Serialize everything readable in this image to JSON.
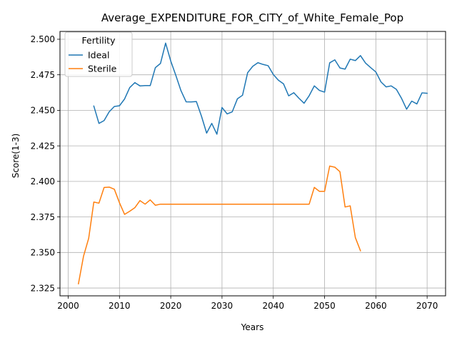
{
  "chart_data": {
    "type": "line",
    "title": "Average_EXPENDITURE_FOR_CITY_of_White_Female_Pop",
    "xlabel": "Years",
    "ylabel": "Score(1-3)",
    "xlim": [
      1998.4,
      2073.6
    ],
    "ylim": [
      2.3195,
      2.5055
    ],
    "xticks": [
      2000,
      2010,
      2020,
      2030,
      2040,
      2050,
      2060,
      2070
    ],
    "xtick_labels": [
      "2000",
      "2010",
      "2020",
      "2030",
      "2040",
      "2050",
      "2060",
      "2070"
    ],
    "yticks": [
      2.325,
      2.35,
      2.375,
      2.4,
      2.425,
      2.45,
      2.475,
      2.5
    ],
    "ytick_labels": [
      "2.325",
      "2.350",
      "2.375",
      "2.400",
      "2.425",
      "2.450",
      "2.475",
      "2.500"
    ],
    "grid": true,
    "legend": {
      "title": "Fertility",
      "placement": "top-left"
    },
    "series": [
      {
        "name": "Ideal",
        "color": "#1f77b4",
        "x": [
          2005,
          2006,
          2007,
          2008,
          2009,
          2010,
          2011,
          2012,
          2013,
          2014,
          2015,
          2016,
          2017,
          2018,
          2019,
          2020,
          2021,
          2022,
          2023,
          2024,
          2025,
          2026,
          2027,
          2028,
          2029,
          2030,
          2031,
          2032,
          2033,
          2034,
          2035,
          2036,
          2037,
          2038,
          2039,
          2040,
          2041,
          2042,
          2043,
          2044,
          2045,
          2046,
          2047,
          2048,
          2049,
          2050,
          2051,
          2052,
          2053,
          2054,
          2055,
          2056,
          2057,
          2058,
          2059,
          2060,
          2061,
          2062,
          2063,
          2064,
          2065,
          2066,
          2067,
          2068,
          2069,
          2070
        ],
        "y": [
          2.453,
          2.4408,
          2.4428,
          2.449,
          2.4527,
          2.4532,
          2.458,
          2.466,
          2.4695,
          2.4672,
          2.4674,
          2.4674,
          2.48,
          2.483,
          2.4973,
          2.4847,
          2.4745,
          2.4638,
          2.456,
          2.4559,
          2.4562,
          2.4458,
          2.434,
          2.4408,
          2.4332,
          2.452,
          2.4475,
          2.449,
          2.4581,
          2.4606,
          2.4765,
          2.481,
          2.4835,
          2.4823,
          2.4814,
          2.4752,
          2.4712,
          2.4686,
          2.4602,
          2.4624,
          2.4585,
          2.455,
          2.4603,
          2.4672,
          2.464,
          2.4628,
          2.4834,
          2.4855,
          2.4798,
          2.479,
          2.486,
          2.485,
          2.4885,
          2.4832,
          2.48,
          2.477,
          2.47,
          2.4665,
          2.4672,
          2.4648,
          2.4585,
          2.4508,
          2.4565,
          2.4545,
          2.4623,
          2.462
        ]
      },
      {
        "name": "Sterile",
        "color": "#ff7f0e",
        "x": [
          2002,
          2003,
          2004,
          2005,
          2006,
          2007,
          2008,
          2009,
          2010,
          2011,
          2012,
          2013,
          2014,
          2015,
          2016,
          2017,
          2018,
          2019,
          2020,
          2021,
          2022,
          2023,
          2024,
          2025,
          2026,
          2027,
          2028,
          2029,
          2030,
          2031,
          2032,
          2033,
          2034,
          2035,
          2036,
          2037,
          2038,
          2039,
          2040,
          2041,
          2042,
          2043,
          2044,
          2045,
          2046,
          2047,
          2048,
          2049,
          2050,
          2051,
          2052,
          2053,
          2054,
          2055,
          2056,
          2057
        ],
        "y": [
          2.328,
          2.3475,
          2.36,
          2.3855,
          2.3847,
          2.3957,
          2.396,
          2.3945,
          2.385,
          2.3768,
          2.379,
          2.3815,
          2.3865,
          2.384,
          2.387,
          2.3832,
          2.384,
          2.384,
          2.384,
          2.384,
          2.384,
          2.384,
          2.384,
          2.384,
          2.384,
          2.384,
          2.384,
          2.384,
          2.384,
          2.384,
          2.384,
          2.384,
          2.384,
          2.384,
          2.384,
          2.384,
          2.384,
          2.384,
          2.384,
          2.384,
          2.384,
          2.384,
          2.384,
          2.384,
          2.384,
          2.384,
          2.3958,
          2.393,
          2.393,
          2.4108,
          2.41,
          2.4068,
          2.382,
          2.3828,
          2.3605,
          2.3512
        ]
      }
    ]
  }
}
